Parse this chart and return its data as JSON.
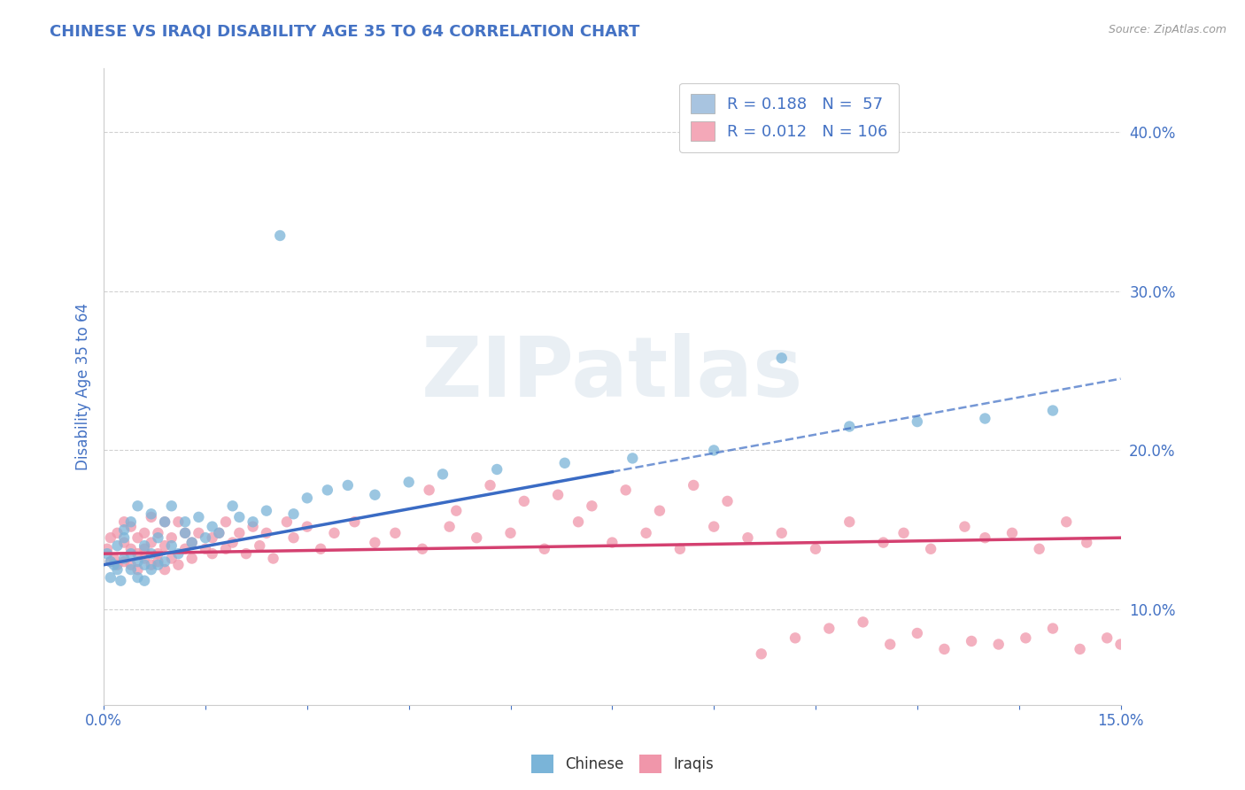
{
  "title": "CHINESE VS IRAQI DISABILITY AGE 35 TO 64 CORRELATION CHART",
  "source_text": "Source: ZipAtlas.com",
  "xlim": [
    0.0,
    0.15
  ],
  "ylim": [
    0.04,
    0.44
  ],
  "legend_chinese": {
    "R": 0.188,
    "N": 57,
    "color": "#a8c4e0"
  },
  "legend_iraqi": {
    "R": 0.012,
    "N": 106,
    "color": "#f4a8b8"
  },
  "chinese_color": "#7ab4d8",
  "iraqi_color": "#f096aa",
  "trend_chinese_color": "#3a6bc4",
  "trend_iraqi_color": "#d44070",
  "background_color": "#ffffff",
  "grid_color": "#cccccc",
  "title_color": "#4472c4",
  "axis_label_color": "#4472c4",
  "watermark_color": "#d0dce8",
  "watermark_text": "ZIPatlas",
  "ylabel": "Disability Age 35 to 64",
  "yticks": [
    0.1,
    0.2,
    0.3,
    0.4
  ],
  "chinese_trend_x0": 0.0,
  "chinese_trend_y0": 0.128,
  "chinese_trend_x1": 0.15,
  "chinese_trend_y1": 0.245,
  "iraqi_trend_x0": 0.0,
  "iraqi_trend_y0": 0.135,
  "iraqi_trend_x1": 0.15,
  "iraqi_trend_y1": 0.145,
  "chinese_trend_solid_end": 0.075,
  "chinese_scatter_x": [
    0.0005,
    0.001,
    0.001,
    0.0015,
    0.002,
    0.002,
    0.0025,
    0.003,
    0.003,
    0.003,
    0.004,
    0.004,
    0.004,
    0.005,
    0.005,
    0.005,
    0.006,
    0.006,
    0.006,
    0.007,
    0.007,
    0.007,
    0.008,
    0.008,
    0.009,
    0.009,
    0.01,
    0.01,
    0.011,
    0.012,
    0.012,
    0.013,
    0.014,
    0.015,
    0.016,
    0.017,
    0.019,
    0.02,
    0.022,
    0.024,
    0.026,
    0.028,
    0.03,
    0.033,
    0.036,
    0.04,
    0.045,
    0.05,
    0.058,
    0.068,
    0.078,
    0.09,
    0.1,
    0.11,
    0.12,
    0.13,
    0.14
  ],
  "chinese_scatter_y": [
    0.135,
    0.13,
    0.12,
    0.128,
    0.125,
    0.14,
    0.118,
    0.145,
    0.132,
    0.15,
    0.125,
    0.135,
    0.155,
    0.13,
    0.12,
    0.165,
    0.128,
    0.118,
    0.14,
    0.125,
    0.16,
    0.135,
    0.128,
    0.145,
    0.13,
    0.155,
    0.14,
    0.165,
    0.135,
    0.148,
    0.155,
    0.142,
    0.158,
    0.145,
    0.152,
    0.148,
    0.165,
    0.158,
    0.155,
    0.162,
    0.335,
    0.16,
    0.17,
    0.175,
    0.178,
    0.172,
    0.18,
    0.185,
    0.188,
    0.192,
    0.195,
    0.2,
    0.258,
    0.215,
    0.218,
    0.22,
    0.225
  ],
  "iraqi_scatter_x": [
    0.0005,
    0.001,
    0.001,
    0.0015,
    0.002,
    0.002,
    0.003,
    0.003,
    0.003,
    0.004,
    0.004,
    0.004,
    0.005,
    0.005,
    0.005,
    0.006,
    0.006,
    0.006,
    0.007,
    0.007,
    0.007,
    0.008,
    0.008,
    0.008,
    0.009,
    0.009,
    0.009,
    0.01,
    0.01,
    0.011,
    0.011,
    0.012,
    0.012,
    0.013,
    0.013,
    0.014,
    0.015,
    0.016,
    0.016,
    0.017,
    0.018,
    0.018,
    0.019,
    0.02,
    0.021,
    0.022,
    0.023,
    0.024,
    0.025,
    0.027,
    0.028,
    0.03,
    0.032,
    0.034,
    0.037,
    0.04,
    0.043,
    0.047,
    0.051,
    0.055,
    0.06,
    0.065,
    0.07,
    0.075,
    0.08,
    0.085,
    0.09,
    0.095,
    0.1,
    0.105,
    0.11,
    0.115,
    0.118,
    0.122,
    0.127,
    0.13,
    0.134,
    0.138,
    0.142,
    0.145,
    0.048,
    0.052,
    0.057,
    0.062,
    0.067,
    0.072,
    0.077,
    0.082,
    0.087,
    0.092,
    0.097,
    0.102,
    0.107,
    0.112,
    0.116,
    0.12,
    0.124,
    0.128,
    0.132,
    0.136,
    0.14,
    0.144,
    0.148,
    0.15,
    0.152,
    0.154
  ],
  "iraqi_scatter_y": [
    0.138,
    0.13,
    0.145,
    0.132,
    0.128,
    0.148,
    0.13,
    0.142,
    0.155,
    0.128,
    0.138,
    0.152,
    0.135,
    0.145,
    0.125,
    0.132,
    0.148,
    0.138,
    0.128,
    0.142,
    0.158,
    0.135,
    0.148,
    0.13,
    0.14,
    0.125,
    0.155,
    0.132,
    0.145,
    0.128,
    0.155,
    0.138,
    0.148,
    0.142,
    0.132,
    0.148,
    0.138,
    0.145,
    0.135,
    0.148,
    0.138,
    0.155,
    0.142,
    0.148,
    0.135,
    0.152,
    0.14,
    0.148,
    0.132,
    0.155,
    0.145,
    0.152,
    0.138,
    0.148,
    0.155,
    0.142,
    0.148,
    0.138,
    0.152,
    0.145,
    0.148,
    0.138,
    0.155,
    0.142,
    0.148,
    0.138,
    0.152,
    0.145,
    0.148,
    0.138,
    0.155,
    0.142,
    0.148,
    0.138,
    0.152,
    0.145,
    0.148,
    0.138,
    0.155,
    0.142,
    0.175,
    0.162,
    0.178,
    0.168,
    0.172,
    0.165,
    0.175,
    0.162,
    0.178,
    0.168,
    0.072,
    0.082,
    0.088,
    0.092,
    0.078,
    0.085,
    0.075,
    0.08,
    0.078,
    0.082,
    0.088,
    0.075,
    0.082,
    0.078,
    0.088,
    0.082
  ]
}
